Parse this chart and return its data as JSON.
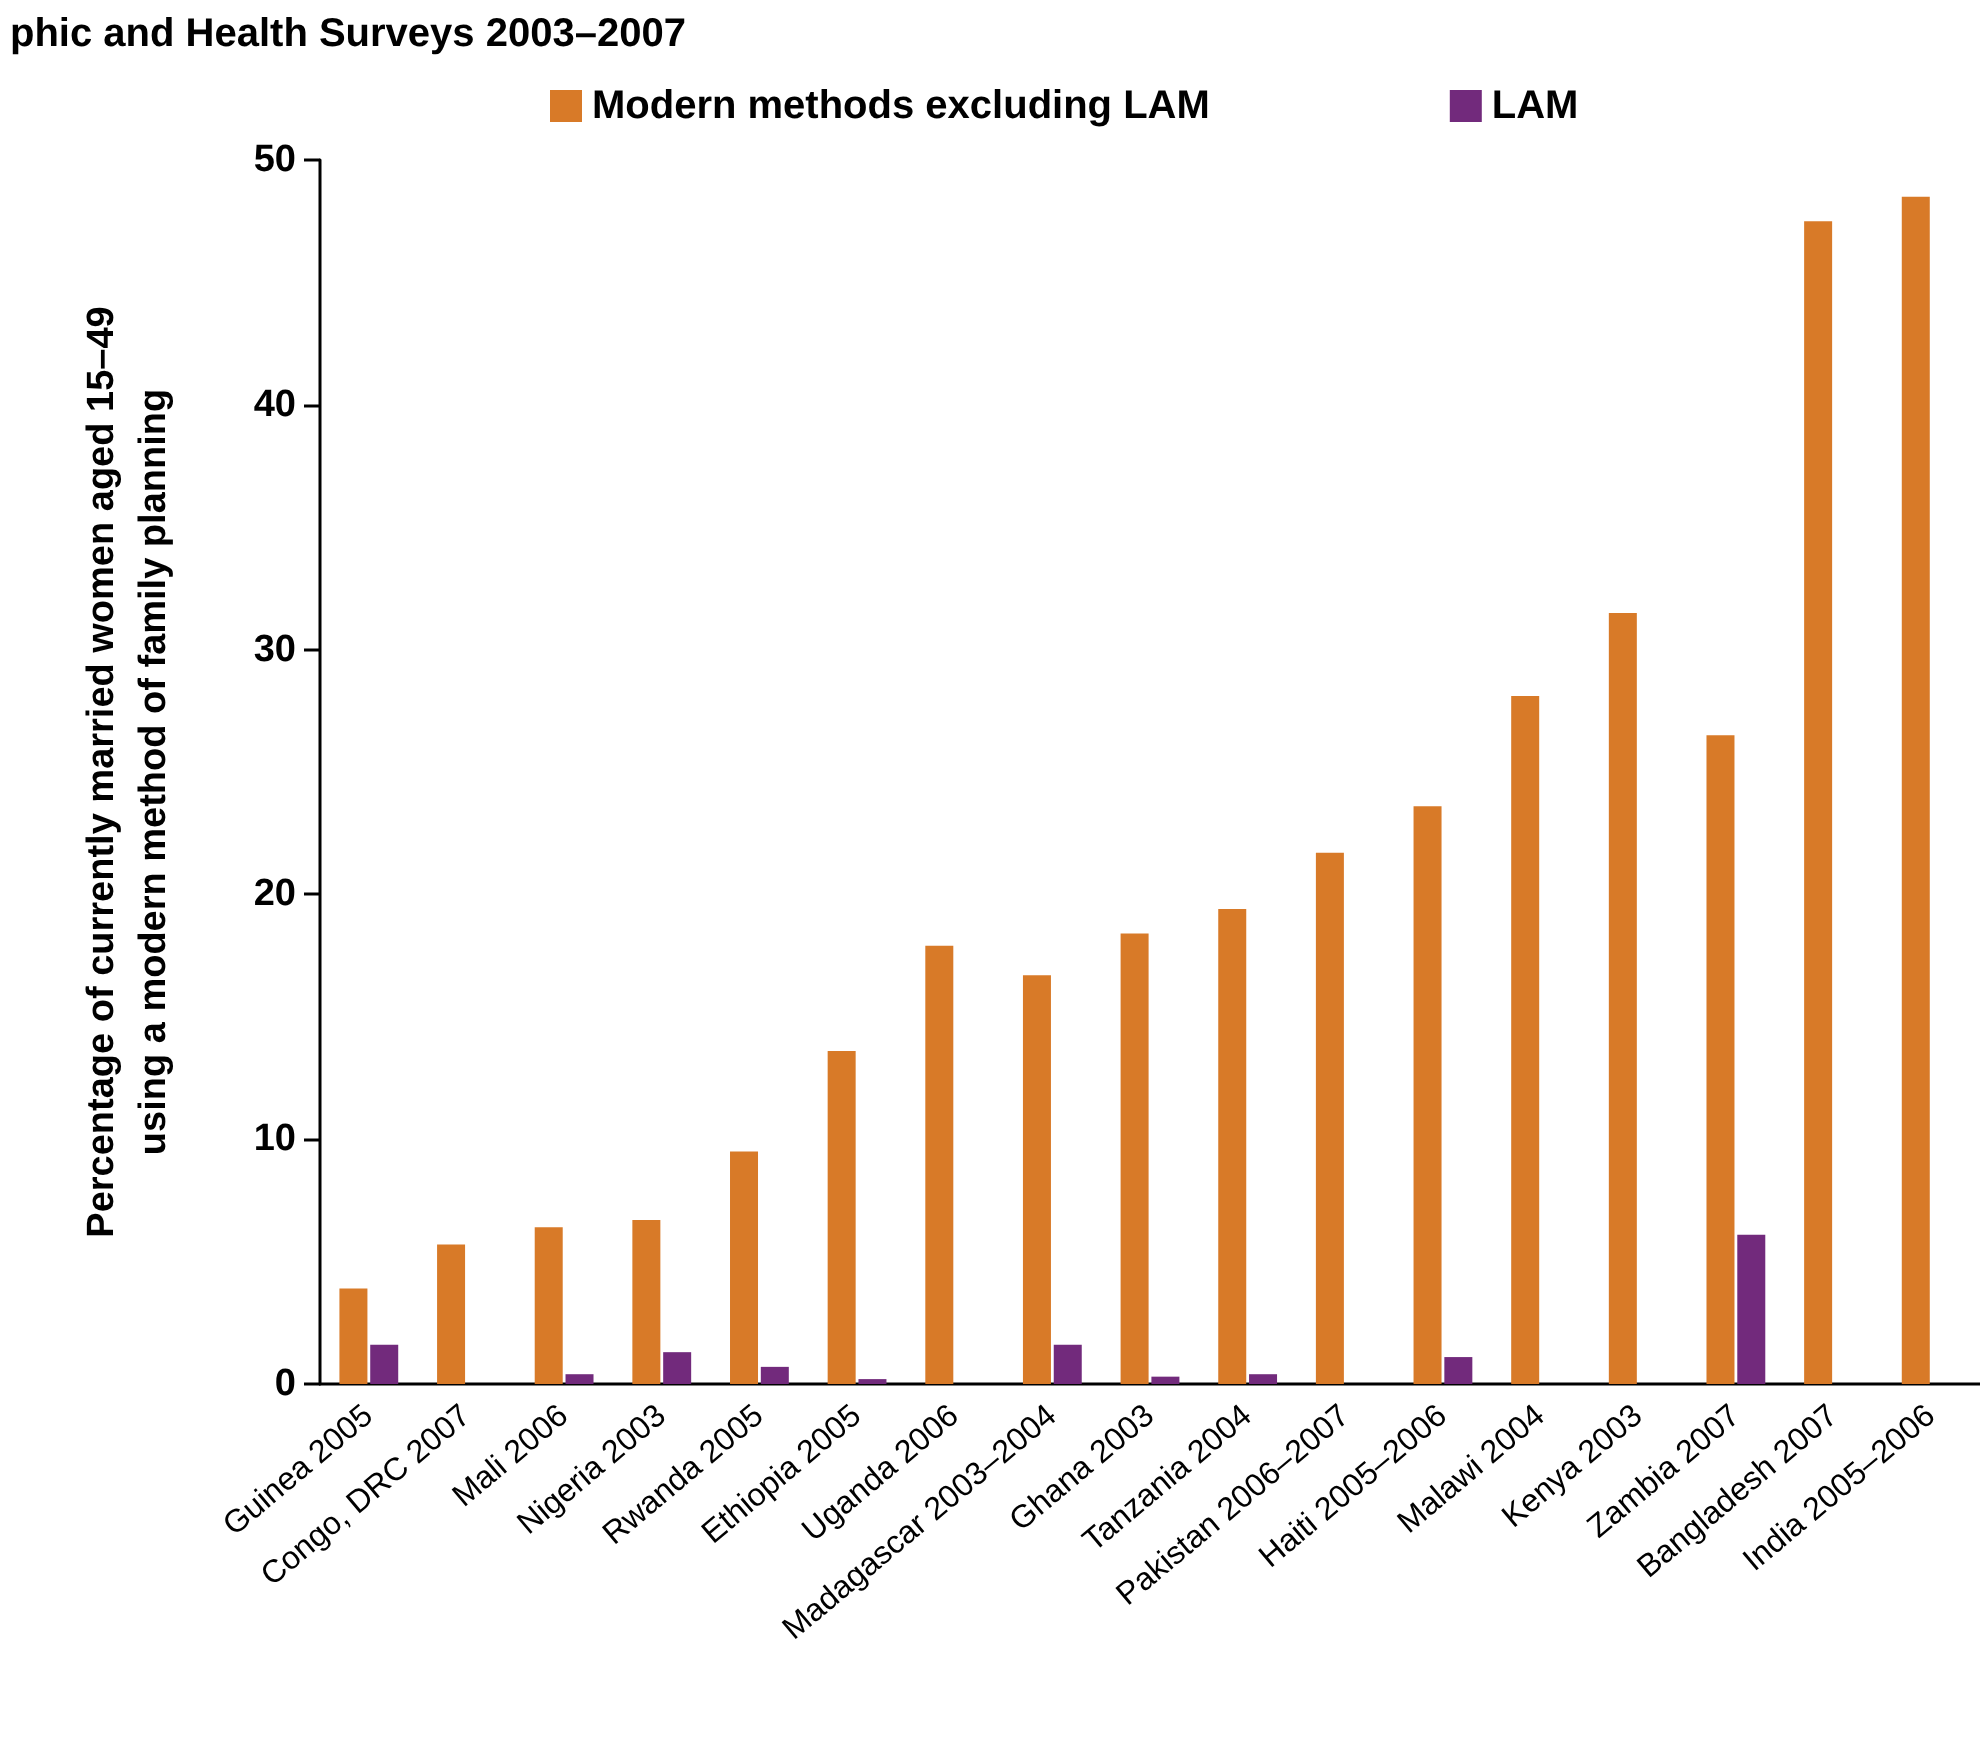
{
  "chart_data": {
    "type": "bar",
    "title": "phic and Health Surveys 2003–2007",
    "ylabel": "Percentage of currently married women aged 15–49\nusing a modern method of family planning",
    "categories": [
      "Guinea 2005",
      "Congo, DRC 2007",
      "Mali 2006",
      "Nigeria 2003",
      "Rwanda 2005",
      "Ethiopia 2005",
      "Uganda 2006",
      "Madagascar 2003–2004",
      "Ghana 2003",
      "Tanzania 2004",
      "Pakistan 2006–2007",
      "Haiti 2005–2006",
      "Malawi 2004",
      "Kenya 2003",
      "Zambia 2007",
      "Bangladesh 2007",
      "India 2005–2006"
    ],
    "series": [
      {
        "name": "Modern methods excluding LAM",
        "color": "#d87a28",
        "values": [
          3.9,
          5.7,
          6.4,
          6.7,
          9.5,
          13.6,
          17.9,
          16.7,
          18.4,
          19.4,
          21.7,
          23.6,
          28.1,
          31.5,
          26.5,
          47.5,
          48.5
        ]
      },
      {
        "name": "LAM",
        "color": "#722a7c",
        "values": [
          1.6,
          0,
          0.4,
          1.3,
          0.7,
          0.2,
          0,
          1.6,
          0.3,
          0.4,
          0,
          1.1,
          0,
          0,
          6.1,
          0,
          0
        ]
      }
    ],
    "ylim": [
      0,
      50
    ],
    "yticks": [
      0,
      10,
      20,
      30,
      40,
      50
    ],
    "grid": false,
    "legend": "top"
  }
}
